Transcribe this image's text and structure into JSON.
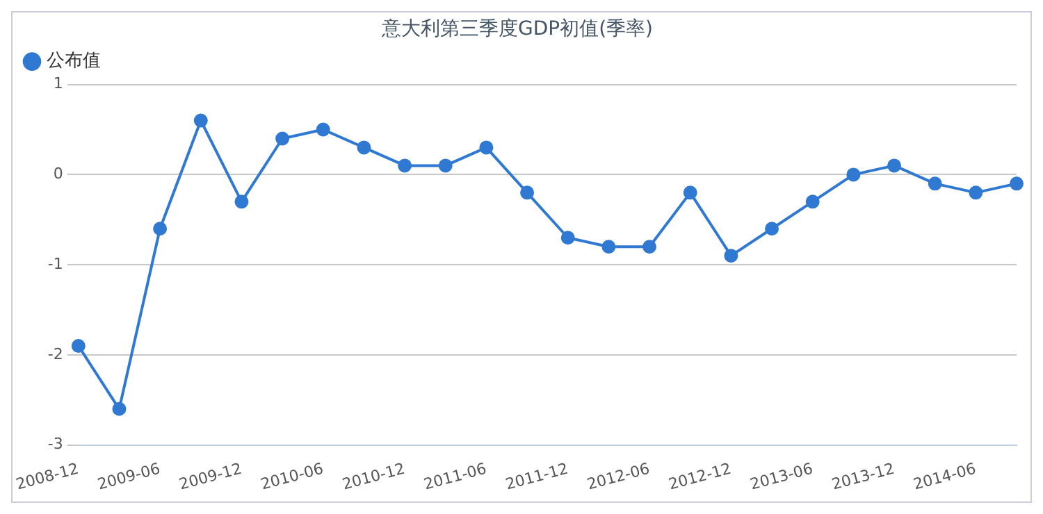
{
  "chart_data": {
    "type": "line",
    "title": "意大利第三季度GDP初值(季率)",
    "categories": [
      "2008-12",
      null,
      "2009-06",
      null,
      "2009-12",
      null,
      "2010-06",
      null,
      "2010-12",
      null,
      "2011-06",
      null,
      "2011-12",
      null,
      "2012-06",
      null,
      "2012-12",
      null,
      "2013-06",
      null,
      "2013-12",
      null,
      "2014-06",
      null
    ],
    "series": [
      {
        "name": "公布值",
        "color": "#3079d2",
        "values": [
          -1.9,
          -2.6,
          -0.6,
          0.6,
          -0.3,
          0.4,
          0.5,
          0.3,
          0.1,
          0.1,
          0.3,
          -0.2,
          -0.7,
          -0.8,
          -0.8,
          -0.2,
          -0.9,
          -0.6,
          -0.3,
          0.0,
          0.1,
          -0.1,
          -0.2,
          -0.1
        ]
      }
    ],
    "ylim": [
      -3,
      1
    ],
    "yticks": [
      -3,
      -2,
      -1,
      0,
      1
    ],
    "grid": "y",
    "legend": "top left",
    "marker": "circle",
    "line_style": "solid"
  }
}
